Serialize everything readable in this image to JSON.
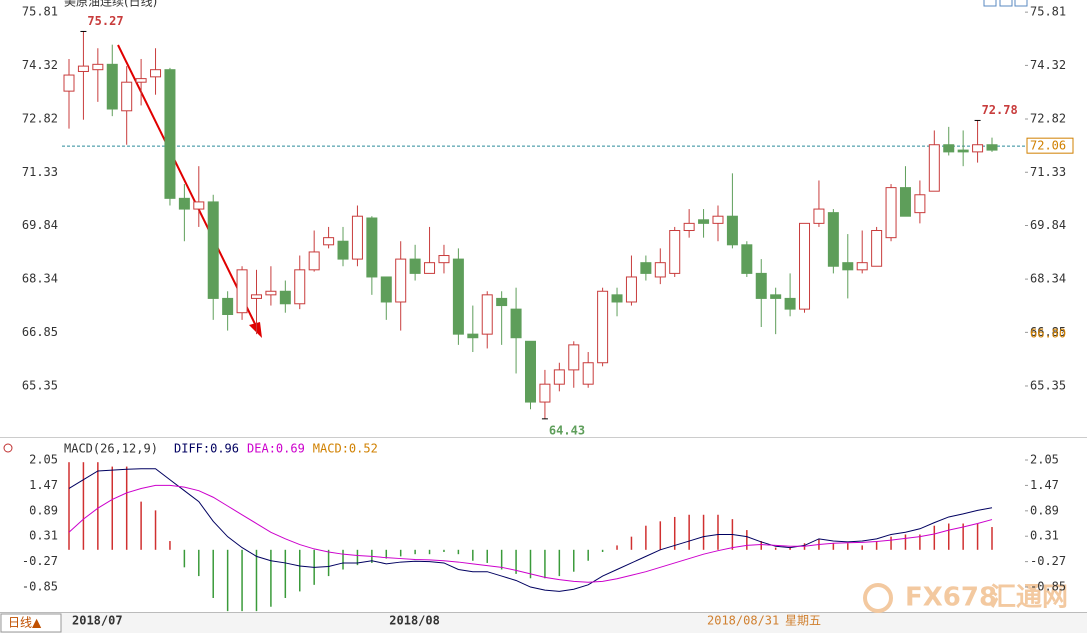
{
  "chart_data": [
    {
      "type": "candlestick",
      "title": "美原油连续(日线)",
      "categories": [
        "2018/07",
        null,
        null,
        null,
        null,
        null,
        null,
        null,
        null,
        null,
        null,
        null,
        null,
        null,
        null,
        null,
        null,
        null,
        null,
        null,
        null,
        null,
        "2018/08",
        null,
        null,
        null,
        null,
        null,
        null,
        null,
        null,
        null,
        null,
        null,
        null,
        null,
        null,
        null,
        null,
        null,
        null,
        null,
        null,
        null,
        null,
        null,
        null,
        null,
        null,
        null,
        null,
        null,
        null,
        null,
        null,
        null,
        null,
        null,
        null,
        null,
        null,
        null,
        null,
        null,
        null
      ],
      "open": [
        73.6,
        74.15,
        74.2,
        74.35,
        73.05,
        73.85,
        74.0,
        74.2,
        70.6,
        70.3,
        70.5,
        67.8,
        67.4,
        67.8,
        67.9,
        68.0,
        67.65,
        68.6,
        69.3,
        69.4,
        68.9,
        70.05,
        68.4,
        67.7,
        68.9,
        68.5,
        68.8,
        68.9,
        66.8,
        66.8,
        67.8,
        67.5,
        66.6,
        64.9,
        65.4,
        65.8,
        65.4,
        66.0,
        67.9,
        67.7,
        68.8,
        68.4,
        68.5,
        69.7,
        70.0,
        69.9,
        70.1,
        69.3,
        68.5,
        67.9,
        67.8,
        67.5,
        69.9,
        70.2,
        68.8,
        68.6,
        68.7,
        69.5,
        70.9,
        70.2,
        70.8,
        72.1,
        71.95,
        71.9,
        72.1
      ],
      "high": [
        74.5,
        75.27,
        74.8,
        74.9,
        74.3,
        74.5,
        74.8,
        74.25,
        71.0,
        71.5,
        70.7,
        68.0,
        68.7,
        68.6,
        68.7,
        68.3,
        69.0,
        69.7,
        69.8,
        69.8,
        70.4,
        70.1,
        68.4,
        69.4,
        69.3,
        69.8,
        69.3,
        69.2,
        67.6,
        68.0,
        68.0,
        68.1,
        66.6,
        65.8,
        66.0,
        66.6,
        66.3,
        68.1,
        68.1,
        69.0,
        69.0,
        69.2,
        69.8,
        70.3,
        70.3,
        70.4,
        71.3,
        69.4,
        68.9,
        68.1,
        68.5,
        69.9,
        71.1,
        70.3,
        69.6,
        69.7,
        69.8,
        71.0,
        71.5,
        71.1,
        72.5,
        72.6,
        72.5,
        72.78,
        72.3
      ],
      "low": [
        72.55,
        72.8,
        73.3,
        72.9,
        72.1,
        73.2,
        73.5,
        70.4,
        69.4,
        69.8,
        67.2,
        66.9,
        67.2,
        66.8,
        67.6,
        67.4,
        67.5,
        68.55,
        69.2,
        68.7,
        68.7,
        67.9,
        67.2,
        66.9,
        68.3,
        68.5,
        68.5,
        66.5,
        66.3,
        66.4,
        66.5,
        65.7,
        64.7,
        64.43,
        65.2,
        65.3,
        65.3,
        65.9,
        67.3,
        67.6,
        68.3,
        68.2,
        68.4,
        69.5,
        69.5,
        69.4,
        69.2,
        68.4,
        67.0,
        66.8,
        67.3,
        67.4,
        69.8,
        68.5,
        67.8,
        68.5,
        68.7,
        69.4,
        70.1,
        69.9,
        70.8,
        71.8,
        71.5,
        71.6,
        71.9
      ],
      "close": [
        74.05,
        74.3,
        74.35,
        73.1,
        73.85,
        73.95,
        74.2,
        70.6,
        70.3,
        70.5,
        67.8,
        67.35,
        68.6,
        67.9,
        68.0,
        67.65,
        68.6,
        69.1,
        69.5,
        68.9,
        70.1,
        68.4,
        67.7,
        68.9,
        68.5,
        68.8,
        69.0,
        66.8,
        66.7,
        67.9,
        67.6,
        66.7,
        64.9,
        65.4,
        65.8,
        66.5,
        66.0,
        68.0,
        67.7,
        68.4,
        68.5,
        68.8,
        69.7,
        69.9,
        69.9,
        70.1,
        69.3,
        68.5,
        67.8,
        67.8,
        67.5,
        69.9,
        70.3,
        68.7,
        68.6,
        68.8,
        69.7,
        70.9,
        70.1,
        70.7,
        72.1,
        71.9,
        71.9,
        72.1,
        71.95
      ],
      "up_color": "#c83c3c",
      "down_color": "#5e9e5a",
      "ylim": [
        63.95,
        76.15
      ],
      "yticks": [
        75.81,
        74.32,
        72.82,
        71.33,
        69.84,
        68.34,
        66.85,
        65.35
      ],
      "extreme_labels": [
        75.27,
        64.43,
        72.78
      ],
      "current_price": 72.06,
      "reference_price": {
        "value": 66.8,
        "label": "66.80"
      }
    },
    {
      "type": "macd",
      "title": "MACD(26,12,9)",
      "series": [
        {
          "name": "DIFF",
          "color": "#000060",
          "values": [
            1.4,
            1.6,
            1.8,
            1.82,
            1.84,
            1.85,
            1.85,
            1.6,
            1.35,
            1.1,
            0.65,
            0.3,
            0.05,
            -0.15,
            -0.25,
            -0.3,
            -0.37,
            -0.4,
            -0.38,
            -0.3,
            -0.3,
            -0.25,
            -0.32,
            -0.28,
            -0.26,
            -0.27,
            -0.3,
            -0.45,
            -0.5,
            -0.5,
            -0.6,
            -0.7,
            -0.85,
            -0.92,
            -0.95,
            -0.9,
            -0.8,
            -0.6,
            -0.45,
            -0.3,
            -0.15,
            0.0,
            0.1,
            0.2,
            0.3,
            0.35,
            0.35,
            0.3,
            0.18,
            0.08,
            0.05,
            0.1,
            0.25,
            0.2,
            0.18,
            0.2,
            0.25,
            0.35,
            0.4,
            0.48,
            0.62,
            0.75,
            0.82,
            0.9,
            0.96
          ]
        },
        {
          "name": "DEA",
          "color": "#cc00cc",
          "values": [
            0.4,
            0.7,
            0.95,
            1.15,
            1.3,
            1.4,
            1.47,
            1.47,
            1.43,
            1.35,
            1.2,
            1.0,
            0.8,
            0.6,
            0.4,
            0.25,
            0.12,
            0.02,
            -0.05,
            -0.1,
            -0.13,
            -0.15,
            -0.18,
            -0.2,
            -0.22,
            -0.23,
            -0.25,
            -0.28,
            -0.32,
            -0.36,
            -0.4,
            -0.47,
            -0.55,
            -0.63,
            -0.68,
            -0.72,
            -0.74,
            -0.72,
            -0.66,
            -0.58,
            -0.5,
            -0.4,
            -0.3,
            -0.2,
            -0.1,
            -0.02,
            0.05,
            0.1,
            0.12,
            0.1,
            0.08,
            0.08,
            0.12,
            0.15,
            0.16,
            0.17,
            0.19,
            0.22,
            0.26,
            0.3,
            0.36,
            0.45,
            0.52,
            0.6,
            0.69
          ]
        },
        {
          "name": "MACD",
          "color": "#d08000",
          "up_color": "#d03030",
          "down_color": "#3a9a3a",
          "values": [
            2.0,
            2.0,
            2.0,
            1.9,
            1.9,
            1.1,
            0.9,
            0.2,
            -0.4,
            -0.6,
            -1.1,
            -1.4,
            -1.4,
            -1.4,
            -1.3,
            -1.1,
            -0.95,
            -0.8,
            -0.6,
            -0.45,
            -0.35,
            -0.3,
            -0.2,
            -0.15,
            -0.1,
            -0.1,
            -0.05,
            -0.1,
            -0.25,
            -0.3,
            -0.45,
            -0.55,
            -0.65,
            -0.65,
            -0.6,
            -0.5,
            -0.25,
            -0.05,
            0.1,
            0.3,
            0.55,
            0.65,
            0.75,
            0.8,
            0.8,
            0.8,
            0.7,
            0.45,
            0.2,
            0.05,
            0.05,
            0.15,
            0.25,
            0.15,
            0.15,
            0.1,
            0.2,
            0.3,
            0.35,
            0.35,
            0.55,
            0.6,
            0.6,
            0.6,
            0.52
          ]
        }
      ],
      "ylim": [
        -1.42,
        2.21
      ],
      "yticks": [
        2.05,
        1.47,
        0.89,
        0.31,
        -0.27,
        -0.85
      ]
    }
  ],
  "period_button": "日线▲",
  "status_date": "2018/08/31",
  "status_weekday": "星期五",
  "watermark": {
    "brand": "FX678",
    "name": "汇通网"
  }
}
